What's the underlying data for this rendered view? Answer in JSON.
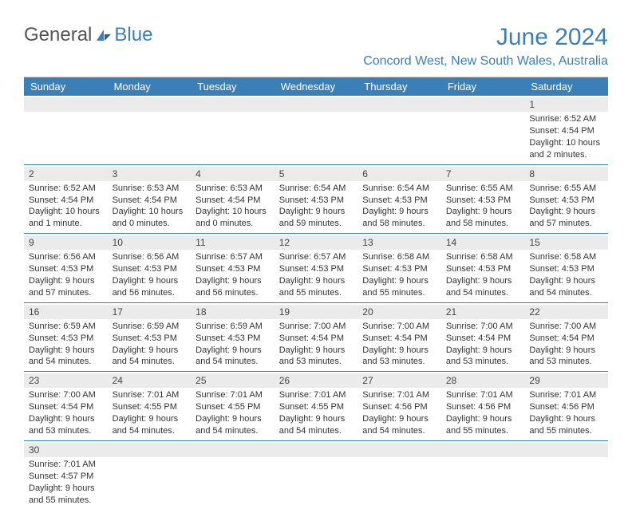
{
  "brand": {
    "text1": "General",
    "text2": "Blue"
  },
  "title": "June 2024",
  "location": "Concord West, New South Wales, Australia",
  "colors": {
    "accent": "#3a7fb5",
    "header_bg": "#3a7fb5",
    "daynum_bg": "#ebebeb",
    "text": "#333333",
    "page_bg": "#ffffff"
  },
  "days_of_week": [
    "Sunday",
    "Monday",
    "Tuesday",
    "Wednesday",
    "Thursday",
    "Friday",
    "Saturday"
  ],
  "weeks": [
    [
      null,
      null,
      null,
      null,
      null,
      null,
      {
        "n": "1",
        "sr": "Sunrise: 6:52 AM",
        "ss": "Sunset: 4:54 PM",
        "d1": "Daylight: 10 hours",
        "d2": "and 2 minutes."
      }
    ],
    [
      {
        "n": "2",
        "sr": "Sunrise: 6:52 AM",
        "ss": "Sunset: 4:54 PM",
        "d1": "Daylight: 10 hours",
        "d2": "and 1 minute."
      },
      {
        "n": "3",
        "sr": "Sunrise: 6:53 AM",
        "ss": "Sunset: 4:54 PM",
        "d1": "Daylight: 10 hours",
        "d2": "and 0 minutes."
      },
      {
        "n": "4",
        "sr": "Sunrise: 6:53 AM",
        "ss": "Sunset: 4:54 PM",
        "d1": "Daylight: 10 hours",
        "d2": "and 0 minutes."
      },
      {
        "n": "5",
        "sr": "Sunrise: 6:54 AM",
        "ss": "Sunset: 4:53 PM",
        "d1": "Daylight: 9 hours",
        "d2": "and 59 minutes."
      },
      {
        "n": "6",
        "sr": "Sunrise: 6:54 AM",
        "ss": "Sunset: 4:53 PM",
        "d1": "Daylight: 9 hours",
        "d2": "and 58 minutes."
      },
      {
        "n": "7",
        "sr": "Sunrise: 6:55 AM",
        "ss": "Sunset: 4:53 PM",
        "d1": "Daylight: 9 hours",
        "d2": "and 58 minutes."
      },
      {
        "n": "8",
        "sr": "Sunrise: 6:55 AM",
        "ss": "Sunset: 4:53 PM",
        "d1": "Daylight: 9 hours",
        "d2": "and 57 minutes."
      }
    ],
    [
      {
        "n": "9",
        "sr": "Sunrise: 6:56 AM",
        "ss": "Sunset: 4:53 PM",
        "d1": "Daylight: 9 hours",
        "d2": "and 57 minutes."
      },
      {
        "n": "10",
        "sr": "Sunrise: 6:56 AM",
        "ss": "Sunset: 4:53 PM",
        "d1": "Daylight: 9 hours",
        "d2": "and 56 minutes."
      },
      {
        "n": "11",
        "sr": "Sunrise: 6:57 AM",
        "ss": "Sunset: 4:53 PM",
        "d1": "Daylight: 9 hours",
        "d2": "and 56 minutes."
      },
      {
        "n": "12",
        "sr": "Sunrise: 6:57 AM",
        "ss": "Sunset: 4:53 PM",
        "d1": "Daylight: 9 hours",
        "d2": "and 55 minutes."
      },
      {
        "n": "13",
        "sr": "Sunrise: 6:58 AM",
        "ss": "Sunset: 4:53 PM",
        "d1": "Daylight: 9 hours",
        "d2": "and 55 minutes."
      },
      {
        "n": "14",
        "sr": "Sunrise: 6:58 AM",
        "ss": "Sunset: 4:53 PM",
        "d1": "Daylight: 9 hours",
        "d2": "and 54 minutes."
      },
      {
        "n": "15",
        "sr": "Sunrise: 6:58 AM",
        "ss": "Sunset: 4:53 PM",
        "d1": "Daylight: 9 hours",
        "d2": "and 54 minutes."
      }
    ],
    [
      {
        "n": "16",
        "sr": "Sunrise: 6:59 AM",
        "ss": "Sunset: 4:53 PM",
        "d1": "Daylight: 9 hours",
        "d2": "and 54 minutes."
      },
      {
        "n": "17",
        "sr": "Sunrise: 6:59 AM",
        "ss": "Sunset: 4:53 PM",
        "d1": "Daylight: 9 hours",
        "d2": "and 54 minutes."
      },
      {
        "n": "18",
        "sr": "Sunrise: 6:59 AM",
        "ss": "Sunset: 4:53 PM",
        "d1": "Daylight: 9 hours",
        "d2": "and 54 minutes."
      },
      {
        "n": "19",
        "sr": "Sunrise: 7:00 AM",
        "ss": "Sunset: 4:54 PM",
        "d1": "Daylight: 9 hours",
        "d2": "and 53 minutes."
      },
      {
        "n": "20",
        "sr": "Sunrise: 7:00 AM",
        "ss": "Sunset: 4:54 PM",
        "d1": "Daylight: 9 hours",
        "d2": "and 53 minutes."
      },
      {
        "n": "21",
        "sr": "Sunrise: 7:00 AM",
        "ss": "Sunset: 4:54 PM",
        "d1": "Daylight: 9 hours",
        "d2": "and 53 minutes."
      },
      {
        "n": "22",
        "sr": "Sunrise: 7:00 AM",
        "ss": "Sunset: 4:54 PM",
        "d1": "Daylight: 9 hours",
        "d2": "and 53 minutes."
      }
    ],
    [
      {
        "n": "23",
        "sr": "Sunrise: 7:00 AM",
        "ss": "Sunset: 4:54 PM",
        "d1": "Daylight: 9 hours",
        "d2": "and 53 minutes."
      },
      {
        "n": "24",
        "sr": "Sunrise: 7:01 AM",
        "ss": "Sunset: 4:55 PM",
        "d1": "Daylight: 9 hours",
        "d2": "and 54 minutes."
      },
      {
        "n": "25",
        "sr": "Sunrise: 7:01 AM",
        "ss": "Sunset: 4:55 PM",
        "d1": "Daylight: 9 hours",
        "d2": "and 54 minutes."
      },
      {
        "n": "26",
        "sr": "Sunrise: 7:01 AM",
        "ss": "Sunset: 4:55 PM",
        "d1": "Daylight: 9 hours",
        "d2": "and 54 minutes."
      },
      {
        "n": "27",
        "sr": "Sunrise: 7:01 AM",
        "ss": "Sunset: 4:56 PM",
        "d1": "Daylight: 9 hours",
        "d2": "and 54 minutes."
      },
      {
        "n": "28",
        "sr": "Sunrise: 7:01 AM",
        "ss": "Sunset: 4:56 PM",
        "d1": "Daylight: 9 hours",
        "d2": "and 55 minutes."
      },
      {
        "n": "29",
        "sr": "Sunrise: 7:01 AM",
        "ss": "Sunset: 4:56 PM",
        "d1": "Daylight: 9 hours",
        "d2": "and 55 minutes."
      }
    ],
    [
      {
        "n": "30",
        "sr": "Sunrise: 7:01 AM",
        "ss": "Sunset: 4:57 PM",
        "d1": "Daylight: 9 hours",
        "d2": "and 55 minutes."
      },
      null,
      null,
      null,
      null,
      null,
      null
    ]
  ]
}
